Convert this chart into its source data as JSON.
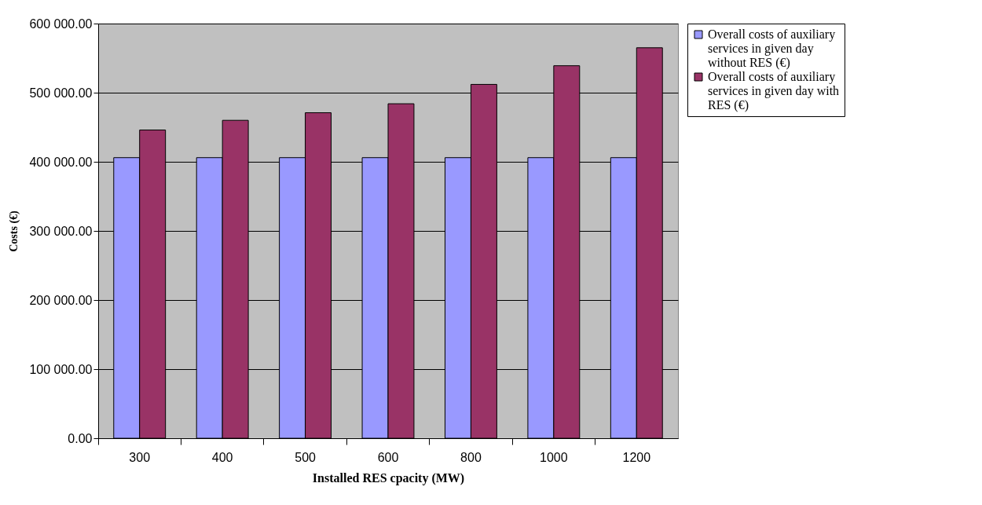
{
  "chart_data": {
    "type": "bar",
    "xlabel": "Installed RES cpacity (MW)",
    "ylabel": "Costs (€)",
    "categories": [
      "300",
      "400",
      "500",
      "600",
      "800",
      "1000",
      "1200"
    ],
    "series": [
      {
        "name": "Overall costs of auxiliary services in given day without RES (€)",
        "color": "#9999ff",
        "values": [
          406000,
          406000,
          406000,
          406000,
          406000,
          406000,
          406000
        ]
      },
      {
        "name": "Overall costs of auxiliary services in given day with RES (€)",
        "color": "#993366",
        "values": [
          446000,
          460000,
          471000,
          484000,
          512000,
          539000,
          565000
        ]
      }
    ],
    "ylim": [
      0,
      600000
    ],
    "yticks": [
      {
        "value": 0,
        "label": "0.00"
      },
      {
        "value": 100000,
        "label": "100 000.00"
      },
      {
        "value": 200000,
        "label": "200 000.00"
      },
      {
        "value": 300000,
        "label": "300 000.00"
      },
      {
        "value": 400000,
        "label": "400 000.00"
      },
      {
        "value": 500000,
        "label": "500 000.00"
      },
      {
        "value": 600000,
        "label": "600 000.00"
      }
    ],
    "grid": "y",
    "legend": "right"
  }
}
